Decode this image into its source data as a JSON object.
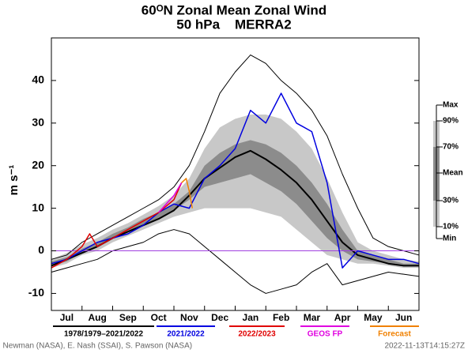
{
  "chart_data": {
    "type": "line",
    "title": "60ᴼN Zonal Mean Zonal Wind",
    "subtitle": "50 hPa    MERRA2",
    "y_label": "m s⁻¹",
    "categories": [
      "Jul",
      "Aug",
      "Sep",
      "Oct",
      "Nov",
      "Dec",
      "Jan",
      "Feb",
      "Mar",
      "Apr",
      "May",
      "Jun"
    ],
    "xlim": [
      0,
      12
    ],
    "ylim": [
      -14,
      50
    ],
    "yticks": [
      -10,
      0,
      10,
      20,
      30,
      40
    ],
    "reference_line": {
      "value": 0,
      "color": "#a040e0"
    },
    "climatology": {
      "name": "1978/1979–2021/2022",
      "x": [
        0,
        0.5,
        1,
        1.5,
        2,
        2.5,
        3,
        3.5,
        4,
        4.5,
        5,
        5.5,
        6,
        6.5,
        7,
        7.5,
        8,
        8.5,
        9,
        9.5,
        10,
        10.5,
        11,
        11.5,
        12
      ],
      "levels": [
        {
          "name": "Max",
          "values": [
            -2,
            -1,
            2,
            4,
            6,
            8,
            10,
            12,
            15,
            20,
            28,
            37,
            42,
            46,
            44,
            40,
            37,
            33,
            27,
            18,
            10,
            3,
            1,
            0,
            -1
          ]
        },
        {
          "name": "90%",
          "values": [
            -2,
            -0.5,
            1.5,
            3,
            5,
            6.5,
            8.5,
            10.5,
            13,
            17,
            24,
            29,
            31,
            32,
            32,
            31,
            28,
            24,
            17,
            9,
            2,
            0,
            -1,
            -2,
            -2.5
          ]
        },
        {
          "name": "70%",
          "values": [
            -2.5,
            -1.5,
            0.5,
            2,
            4,
            5.5,
            7.5,
            9,
            11,
            14,
            20,
            23,
            25,
            26,
            25,
            23,
            20,
            16,
            11,
            5,
            0,
            -1,
            -2,
            -3,
            -3
          ]
        },
        {
          "name": "Mean",
          "values": [
            -3.5,
            -2,
            -0.5,
            1,
            3,
            4.5,
            6,
            7.5,
            9.5,
            13,
            17,
            19.5,
            22,
            23.5,
            21.5,
            19,
            16,
            12,
            7,
            2,
            -1,
            -2,
            -3,
            -3.5,
            -3.5
          ]
        },
        {
          "name": "30%",
          "values": [
            -3.5,
            -2.5,
            -0.5,
            1,
            3,
            4.5,
            6,
            7.5,
            9.5,
            12,
            15,
            16,
            17,
            18,
            16,
            14,
            11,
            7,
            3,
            0,
            -2,
            -2.5,
            -3,
            -3.5,
            -3.5
          ]
        },
        {
          "name": "10%",
          "values": [
            -4,
            -3,
            -1,
            0,
            2,
            3.5,
            5,
            6.5,
            8,
            9,
            10,
            10,
            10,
            10,
            9,
            8,
            5,
            2,
            -1,
            -2,
            -3,
            -3,
            -3.5,
            -4,
            -4
          ]
        },
        {
          "name": "Min",
          "values": [
            -5,
            -4,
            -3,
            -2,
            0,
            1,
            2,
            4,
            5,
            4,
            1,
            -2,
            -5,
            -8,
            -10,
            -9,
            -8,
            -5,
            -3,
            -8,
            -7,
            -6,
            -5,
            -5.5,
            -6
          ]
        }
      ],
      "light_color": "#c8c8c8",
      "dark_color": "#8c8c8c",
      "color": "#000000"
    },
    "series": [
      {
        "name": "2021/2022",
        "color": "#0000e0",
        "x": [
          0,
          0.5,
          1,
          1.5,
          2,
          2.5,
          3,
          3.5,
          4,
          4.5,
          5,
          5.5,
          6,
          6.5,
          7,
          7.5,
          8,
          8.5,
          9,
          9.5,
          10,
          10.5,
          11,
          11.5,
          12
        ],
        "values": [
          -3,
          -2,
          0,
          2,
          3,
          4,
          6,
          9,
          11,
          10,
          17,
          20,
          24,
          33,
          30,
          37,
          30,
          28,
          16,
          -4,
          0,
          -1,
          -2,
          -2,
          -3
        ]
      },
      {
        "name": "2022/2023",
        "color": "#e00000",
        "x": [
          0,
          0.5,
          1,
          1.25,
          1.5,
          2,
          2.5,
          3,
          3.5,
          4,
          4.25
        ],
        "values": [
          -4,
          -2,
          1,
          4,
          1,
          3,
          5,
          7,
          9,
          12,
          16
        ]
      },
      {
        "name": "GEOS FP",
        "color": "#e000e0",
        "x": [
          3.5,
          3.75,
          4,
          4.25
        ],
        "values": [
          9,
          11,
          13,
          16
        ]
      },
      {
        "name": "Forecast",
        "color": "#f08000",
        "x": [
          4.25,
          4.4,
          4.5,
          4.6
        ],
        "values": [
          16,
          17,
          14,
          10
        ]
      }
    ],
    "footer_left": ". Newman (NASA), E. Nash (SSAI), S. Pawson (NASA)",
    "footer_right": "2022-11-13T14:15:27Z"
  }
}
